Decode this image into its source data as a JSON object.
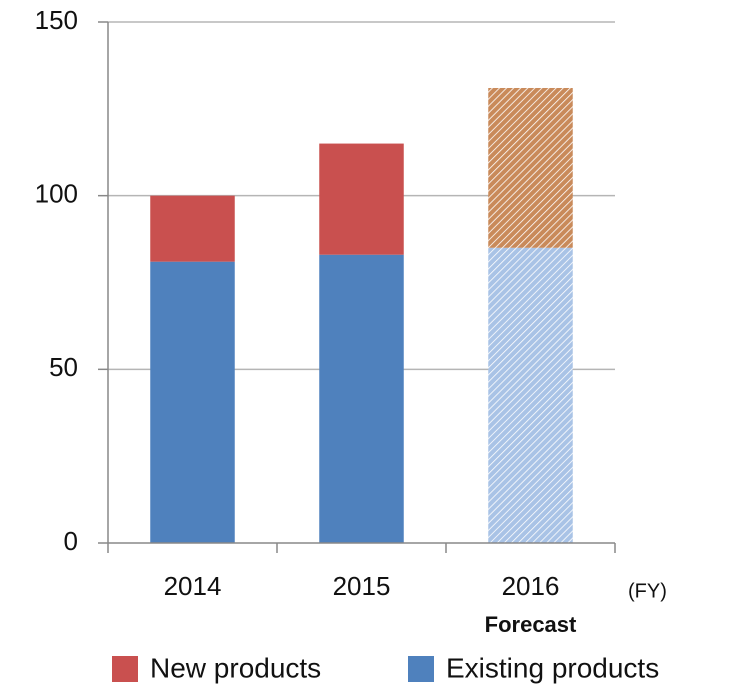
{
  "chart_data": {
    "type": "stacked_bar",
    "categories": [
      "2014",
      "2015",
      "2016"
    ],
    "x_axis_label": "(FY)",
    "annotations": [
      {
        "category": 2,
        "text": "Forecast"
      }
    ],
    "hatched": [
      false,
      false,
      true
    ],
    "series": [
      {
        "name": "Existing products",
        "color": "#4f81bd",
        "hatch_color": "#a9c3e6",
        "values": [
          81,
          83,
          85
        ]
      },
      {
        "name": "New products",
        "color": "#c9504f",
        "hatch_color": "#c98a5a",
        "values": [
          19,
          32,
          46
        ]
      }
    ],
    "legend_order": [
      1,
      0
    ],
    "ylim": [
      0,
      150
    ],
    "yticks": [
      0,
      50,
      100,
      150
    ],
    "grid": true
  }
}
